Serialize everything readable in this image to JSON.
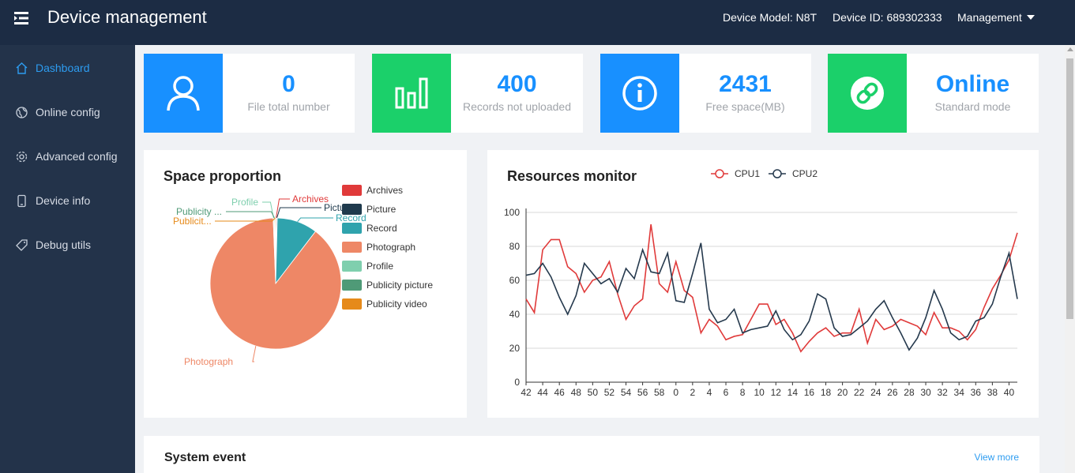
{
  "header": {
    "title": "Device management",
    "device_model": "Device Model: N8T",
    "device_id": "Device ID: 689302333",
    "management": "Management"
  },
  "sidebar": {
    "items": [
      {
        "label": "Dashboard",
        "icon": "home-icon",
        "active": true
      },
      {
        "label": "Online config",
        "icon": "globe-icon",
        "active": false
      },
      {
        "label": "Advanced config",
        "icon": "gear-icon",
        "active": false
      },
      {
        "label": "Device info",
        "icon": "phone-icon",
        "active": false
      },
      {
        "label": "Debug utils",
        "icon": "tag-icon",
        "active": false
      }
    ]
  },
  "cards": [
    {
      "value": "0",
      "label": "File total number",
      "icon": "user-icon",
      "color": "#1890ff"
    },
    {
      "value": "400",
      "label": "Records not uploaded",
      "icon": "bar-chart-icon",
      "color": "#1bd06a"
    },
    {
      "value": "2431",
      "label": "Free space(MB)",
      "icon": "info-icon",
      "color": "#1890ff"
    },
    {
      "value": "Online",
      "label": "Standard mode",
      "icon": "link-icon",
      "color": "#1bd06a"
    }
  ],
  "space": {
    "title": "Space proportion"
  },
  "resources": {
    "title": "Resources monitor"
  },
  "system_event": {
    "title": "System event",
    "view_more": "View more"
  },
  "chart_data": [
    {
      "type": "pie",
      "title": "Space proportion",
      "labels": [
        "Archives",
        "Picture",
        "Record",
        "Photograph",
        "Profile",
        "Publicity picture",
        "Publicity video"
      ],
      "slice_labels": [
        "Archives",
        "Pictu",
        "Record",
        "Photograph",
        "Profile",
        "Publicity ...",
        "Publicit..."
      ],
      "values": [
        0.2,
        0.2,
        10,
        89,
        0.2,
        0.2,
        0.2
      ],
      "colors": [
        "#e03a3a",
        "#1f3a4d",
        "#2fa3ad",
        "#ee8766",
        "#7fcfae",
        "#4f9a77",
        "#e68a1a"
      ]
    },
    {
      "type": "line",
      "title": "Resources monitor",
      "x": [
        "42",
        "43",
        "44",
        "45",
        "46",
        "47",
        "48",
        "49",
        "50",
        "51",
        "52",
        "53",
        "54",
        "55",
        "56",
        "57",
        "58",
        "59",
        "0",
        "1",
        "2",
        "3",
        "4",
        "5",
        "6",
        "7",
        "8",
        "9",
        "10",
        "11",
        "12",
        "13",
        "14",
        "15",
        "16",
        "17",
        "18",
        "19",
        "20",
        "21",
        "22",
        "23",
        "24",
        "25",
        "26",
        "27",
        "28",
        "29",
        "30",
        "31",
        "32",
        "33",
        "34",
        "35",
        "36",
        "37",
        "38",
        "39",
        "40",
        "41"
      ],
      "tick_labels": [
        "42",
        "44",
        "46",
        "48",
        "50",
        "52",
        "54",
        "56",
        "58",
        "0",
        "2",
        "4",
        "6",
        "8",
        "10",
        "12",
        "14",
        "16",
        "18",
        "20",
        "22",
        "24",
        "26",
        "28",
        "30",
        "32",
        "34",
        "36",
        "38",
        "40"
      ],
      "ylim": [
        0,
        100
      ],
      "yticks": [
        0,
        20,
        40,
        60,
        80,
        100
      ],
      "series": [
        {
          "name": "CPU1",
          "color": "#e03a3a",
          "values": [
            49,
            41,
            78,
            84,
            84,
            68,
            64,
            53,
            60,
            62,
            71,
            52,
            37,
            45,
            49,
            93,
            58,
            53,
            71,
            54,
            50,
            29,
            37,
            33,
            25,
            27,
            28,
            37,
            46,
            46,
            34,
            37,
            29,
            18,
            24,
            29,
            32,
            27,
            29,
            29,
            43,
            23,
            37,
            31,
            33,
            37,
            35,
            33,
            28,
            41,
            32,
            32,
            30,
            25,
            31,
            44,
            55,
            63,
            72,
            88
          ]
        },
        {
          "name": "CPU2",
          "color": "#25394d",
          "values": [
            63,
            64,
            70,
            62,
            50,
            40,
            51,
            70,
            64,
            58,
            61,
            53,
            67,
            61,
            78,
            65,
            64,
            76,
            48,
            47,
            64,
            82,
            43,
            35,
            37,
            43,
            29,
            31,
            32,
            33,
            42,
            31,
            25,
            28,
            36,
            52,
            49,
            32,
            27,
            28,
            32,
            36,
            43,
            48,
            38,
            29,
            19,
            26,
            38,
            54,
            43,
            29,
            25,
            27,
            36,
            38,
            46,
            62,
            76,
            49
          ]
        }
      ]
    }
  ]
}
